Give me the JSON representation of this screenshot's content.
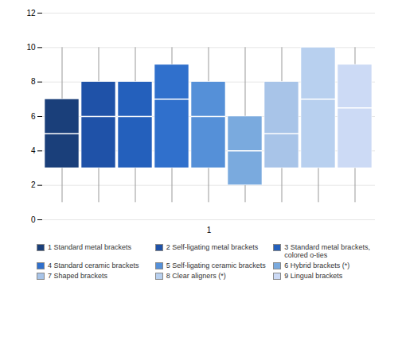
{
  "chart_data": {
    "type": "box",
    "categories": [
      "1"
    ],
    "series": [
      {
        "name": "1 Standard metal brackets",
        "color": "#1a3f7a",
        "q1": 3.0,
        "median": 5.0,
        "q3": 7.0,
        "whisker_low": 1.0,
        "whisker_high": 10.0
      },
      {
        "name": "2 Self-ligating metal brackets",
        "color": "#1f52a8",
        "q1": 3.0,
        "median": 6.0,
        "q3": 8.0,
        "whisker_low": 1.0,
        "whisker_high": 10.0
      },
      {
        "name": "3 Standard metal brackets, colored o-ties",
        "color": "#2460bc",
        "q1": 3.0,
        "median": 6.0,
        "q3": 8.0,
        "whisker_low": 1.0,
        "whisker_high": 10.0
      },
      {
        "name": "4 Standard ceramic brackets",
        "color": "#3070cc",
        "q1": 3.0,
        "median": 7.0,
        "q3": 9.0,
        "whisker_low": 1.0,
        "whisker_high": 10.0
      },
      {
        "name": "5 Self-ligating ceramic brackets",
        "color": "#5590d8",
        "q1": 3.0,
        "median": 6.0,
        "q3": 8.0,
        "whisker_low": 1.0,
        "whisker_high": 10.0
      },
      {
        "name": "6 Hybrid brackets (*)",
        "color": "#7aaade",
        "q1": 2.0,
        "median": 4.0,
        "q3": 6.0,
        "whisker_low": 1.0,
        "whisker_high": 10.0
      },
      {
        "name": "7 Shaped brackets",
        "color": "#a8c4e8",
        "q1": 3.0,
        "median": 5.0,
        "q3": 8.0,
        "whisker_low": 1.0,
        "whisker_high": 10.0
      },
      {
        "name": "8 Clear aligners (*)",
        "color": "#b8d0ef",
        "q1": 3.0,
        "median": 7.0,
        "q3": 10.0,
        "whisker_low": 1.0,
        "whisker_high": 10.0
      },
      {
        "name": "9 Lingual brackets",
        "color": "#ccdaf5",
        "q1": 3.0,
        "median": 6.5,
        "q3": 9.0,
        "whisker_low": 1.0,
        "whisker_high": 10.0
      }
    ],
    "ylim": [
      0,
      12
    ],
    "yticks": [
      0,
      2,
      4,
      6,
      8,
      10,
      12
    ],
    "grid": true,
    "legend": "bottom"
  }
}
